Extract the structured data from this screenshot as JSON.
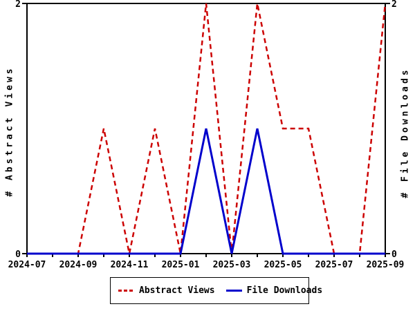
{
  "chart_data": {
    "type": "line",
    "x": [
      "2024-07",
      "2024-08",
      "2024-09",
      "2024-10",
      "2024-11",
      "2024-12",
      "2025-01",
      "2025-02",
      "2025-03",
      "2025-04",
      "2025-05",
      "2025-06",
      "2025-07",
      "2025-08",
      "2025-09"
    ],
    "x_tick_labels": [
      "2024-07",
      "2024-09",
      "2024-11",
      "2025-01",
      "2025-03",
      "2025-05",
      "2025-07",
      "2025-09"
    ],
    "series": [
      {
        "name": "Abstract Views",
        "color": "#cc0000",
        "style": "dashed",
        "axis": "left",
        "values": [
          0,
          0,
          0,
          1,
          0,
          1,
          0,
          2,
          0,
          2,
          1,
          1,
          0,
          0,
          2
        ]
      },
      {
        "name": "File Downloads",
        "color": "#0000cc",
        "style": "solid",
        "axis": "right",
        "values": [
          0,
          0,
          0,
          0,
          0,
          0,
          0,
          1,
          0,
          1,
          0,
          0,
          0,
          0,
          0
        ]
      }
    ],
    "left_axis": {
      "label": "# Abstract Views",
      "min": 0,
      "max": 2,
      "tick_labels": [
        "0",
        "2"
      ]
    },
    "right_axis": {
      "label": "# File Downloads",
      "min": 0,
      "max": 2,
      "tick_labels": [
        "0",
        "2"
      ]
    },
    "legend": {
      "position": "bottom-center",
      "entries": [
        "Abstract Views",
        "File Downloads"
      ]
    },
    "grid": false,
    "background": "#ffffff",
    "frame_color": "#000000"
  }
}
